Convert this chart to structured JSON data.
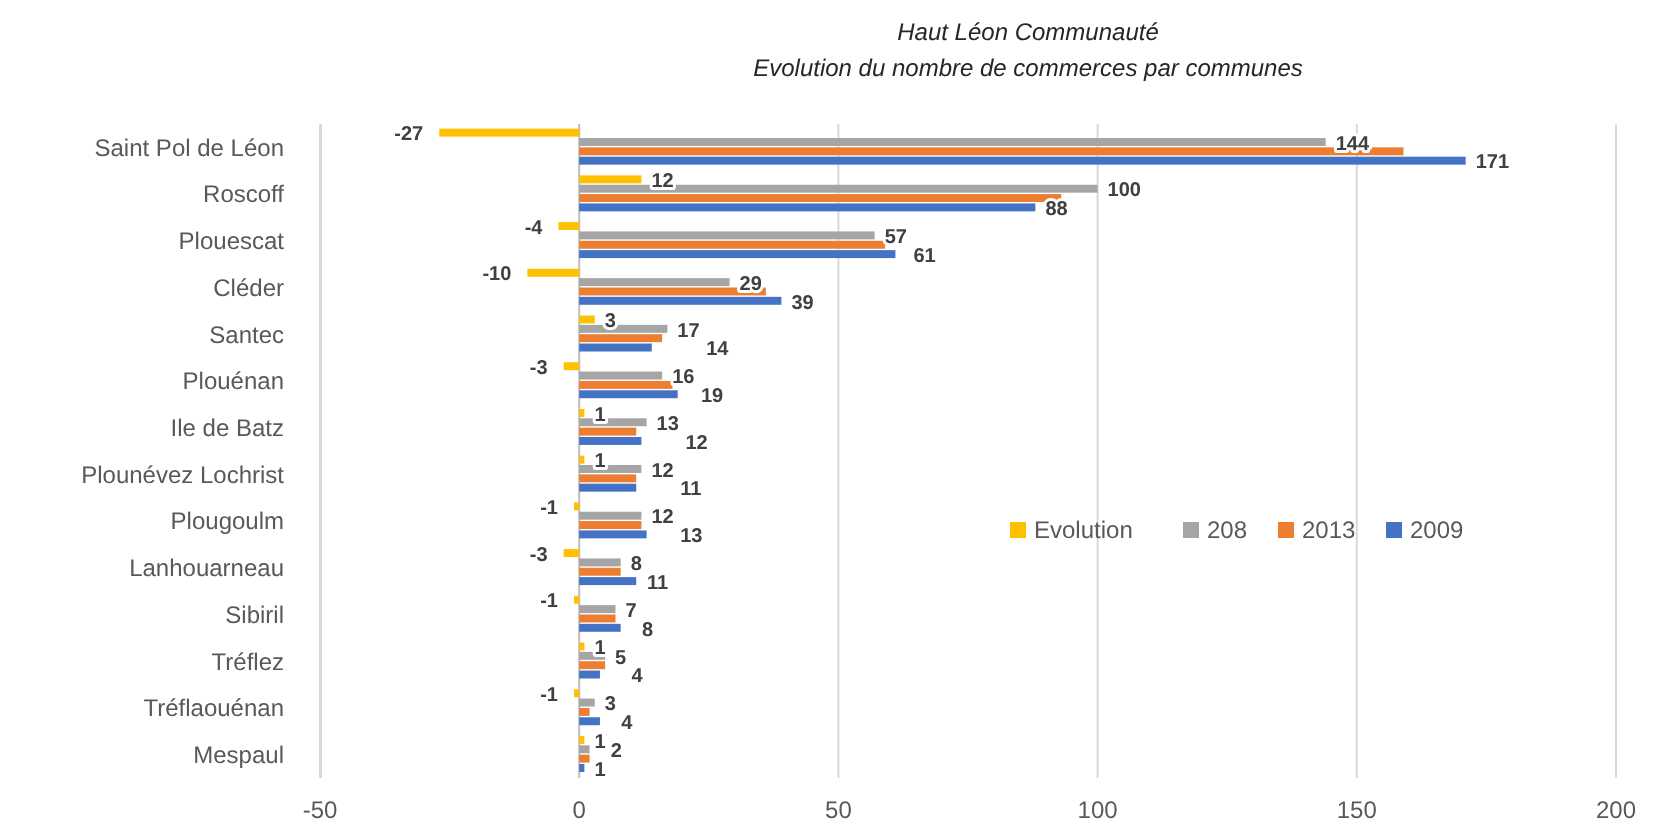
{
  "chart_data": {
    "type": "bar",
    "orientation": "horizontal",
    "title": "Haut Léon Communauté",
    "subtitle": "Evolution du nombre de commerces par communes",
    "categories": [
      "Saint Pol de Léon",
      "Roscoff",
      "Plouescat",
      "Cléder",
      "Santec",
      "Plouénan",
      "Ile de Batz",
      "Plounévez Lochrist",
      "Plougoulm",
      "Lanhouarneau",
      "Sibiril",
      "Tréflez",
      "Tréflaouénan",
      "Mespaul"
    ],
    "series": [
      {
        "name": "Evolution",
        "color": "#ffc000",
        "values": [
          -27,
          12,
          -4,
          -10,
          3,
          -3,
          1,
          1,
          -1,
          -3,
          -1,
          1,
          -1,
          1
        ],
        "value_labels": [
          "-27",
          "12",
          "-4",
          "-10",
          "3",
          "-3",
          "1",
          "1",
          "-1",
          "-3",
          "-1",
          "1",
          "-1",
          "1"
        ]
      },
      {
        "name": "208",
        "color": "#a5a5a5",
        "values": [
          144,
          100,
          57,
          29,
          17,
          16,
          13,
          12,
          12,
          8,
          7,
          5,
          3,
          2
        ],
        "value_labels": [
          "144",
          "100",
          "57",
          "29",
          "17",
          "16",
          "13",
          "12",
          "12",
          "8",
          "7",
          "5",
          "3",
          "2"
        ]
      },
      {
        "name": "2013",
        "color": "#ed7d31",
        "values": [
          159,
          93,
          59,
          36,
          16,
          18,
          11,
          11,
          12,
          8,
          7,
          5,
          2,
          2
        ]
      },
      {
        "name": "2009",
        "color": "#4472c4",
        "values": [
          171,
          88,
          61,
          39,
          14,
          19,
          12,
          11,
          13,
          11,
          8,
          4,
          4,
          1
        ],
        "value_labels": [
          "171",
          "88",
          "61",
          "39",
          "14",
          "19",
          "12",
          "11",
          "13",
          "11",
          "8",
          "4",
          "4",
          "1"
        ]
      }
    ],
    "xlim": [
      -50,
      200
    ],
    "xticks": [
      -50,
      0,
      50,
      100,
      150,
      200
    ],
    "grid": "x",
    "legend": "right"
  }
}
